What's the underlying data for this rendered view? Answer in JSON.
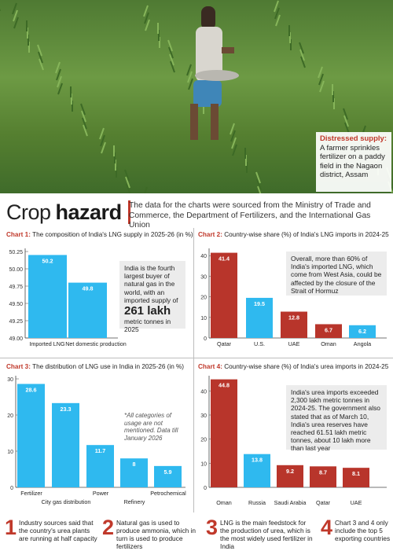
{
  "photo": {
    "icon": "farmer-paddy-photo",
    "caption_lead": "Distressed supply:",
    "caption_text": "A farmer sprinkles fertilizer on a paddy field in the Nagaon district, Assam"
  },
  "headline": {
    "light": "Crop",
    "bold": "hazard",
    "source": "The data for the charts were sourced from the Ministry of Trade and Commerce, the Department of Fertilizers, and the International Gas Union"
  },
  "colors": {
    "accent": "#c0392b",
    "bar_blue": "#2fb9ef",
    "bar_red": "#b8352b",
    "note_bg": "#ececec"
  },
  "charts": {
    "c1": {
      "label": "Chart 1:",
      "title": " The composition of India's LNG supply in 2025-26 (in %)",
      "note": "India is the fourth largest buyer of natural gas in the world, with an imported supply of",
      "note_big": "261 lakh",
      "note_end": "metric tonnes in 2025"
    },
    "c2": {
      "label": "Chart 2:",
      "title": " Country-wise share (%) of India's LNG imports in 2024-25",
      "note": "Overall, more than 60% of India's imported LNG, which come from West Asia, could be affected by the closure of the Strait of Hormuz"
    },
    "c3": {
      "label": "Chart 3:",
      "title": " The distribution of LNG use in India in 2025-26 (in %)",
      "note": "*All categories of usage are not mentioned. Data till January 2026"
    },
    "c4": {
      "label": "Chart 4:",
      "title": " Country-wise share (%) of India's urea imports in 2024-25",
      "note": "India's urea imports exceeded 2,300 lakh metric tonnes in 2024-25. The government also stated that as of March 10, India's urea reserves have reached 61.51 lakh metric tonnes, about 10 lakh more than last year"
    }
  },
  "chart_data": [
    {
      "type": "bar",
      "title": "The composition of India's LNG supply in 2025-26 (in %)",
      "categories": [
        "Imported LNG",
        "Net domestic production"
      ],
      "values": [
        50.2,
        49.8
      ],
      "ylim": [
        49.0,
        50.25
      ],
      "yticks": [
        49.0,
        49.25,
        49.5,
        49.75,
        50.0,
        50.25
      ],
      "color": "#2fb9ef"
    },
    {
      "type": "bar",
      "title": "Country-wise share (%) of India's LNG imports in 2024-25",
      "categories": [
        "Qatar",
        "U.S.",
        "UAE",
        "Oman",
        "Angola"
      ],
      "values": [
        41.4,
        19.5,
        12.8,
        6.7,
        6.2
      ],
      "ylim": [
        0,
        42
      ],
      "yticks": [
        0,
        10,
        20,
        30,
        40
      ],
      "colors": [
        "#b8352b",
        "#2fb9ef",
        "#b8352b",
        "#b8352b",
        "#2fb9ef"
      ]
    },
    {
      "type": "bar",
      "title": "The distribution of LNG use in India in 2025-26 (in %)",
      "categories": [
        "Fertilizer",
        "City gas distribution",
        "Power",
        "Refinery",
        "Petrochemical"
      ],
      "values": [
        28.6,
        23.3,
        11.7,
        8.0,
        5.9
      ],
      "ylim": [
        0,
        30
      ],
      "yticks": [
        0,
        10,
        20,
        30
      ],
      "color": "#2fb9ef"
    },
    {
      "type": "bar",
      "title": "Country-wise share (%) of India's urea imports in 2024-25",
      "categories": [
        "Oman",
        "Russia",
        "Saudi Arabia",
        "Qatar",
        "UAE"
      ],
      "values": [
        44.8,
        13.8,
        9.2,
        8.7,
        8.1
      ],
      "ylim": [
        0,
        45
      ],
      "yticks": [
        0,
        10,
        20,
        30,
        40
      ],
      "colors": [
        "#b8352b",
        "#2fb9ef",
        "#b8352b",
        "#b8352b",
        "#b8352b"
      ]
    }
  ],
  "footer": [
    {
      "num": "1",
      "text": "Industry sources said that the country's urea plants are running at half capacity"
    },
    {
      "num": "2",
      "text": "Natural gas is used to produce ammonia, which in turn is used to produce fertilizers"
    },
    {
      "num": "3",
      "text": "LNG is the main feedstock for the production of urea, which is the most widely used fertilizer in India"
    },
    {
      "num": "4",
      "text": "Chart 3 and 4 only include the top 5 exporting countries"
    }
  ]
}
